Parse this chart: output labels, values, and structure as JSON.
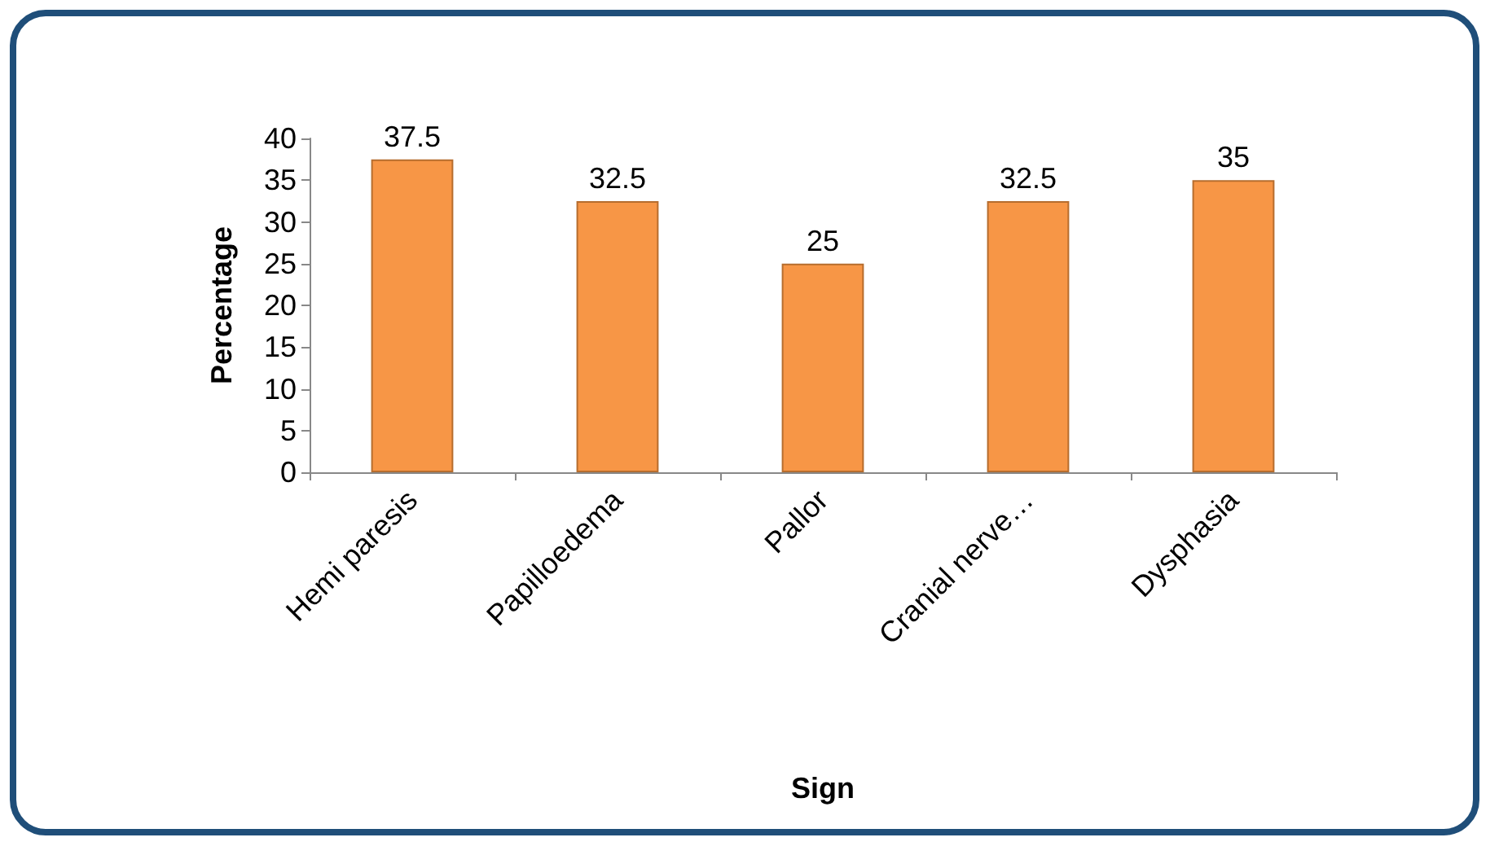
{
  "chart_data": {
    "type": "bar",
    "xlabel": "Sign",
    "ylabel": "Percentage",
    "categories": [
      "Hemi paresis",
      "Papilloedema",
      "Pallor",
      "Cranial nerve…",
      "Dysphasia"
    ],
    "values": [
      37.5,
      32.5,
      25,
      32.5,
      35
    ],
    "color": "#f79646",
    "ylim": [
      0,
      40
    ],
    "yticks": [
      0,
      5,
      10,
      15,
      20,
      25,
      30,
      35,
      40
    ],
    "grid": false,
    "data_labels": true
  }
}
